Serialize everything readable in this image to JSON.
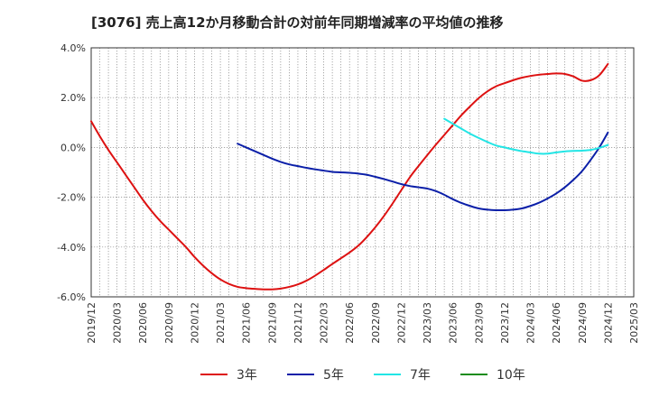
{
  "chart_data": {
    "type": "line",
    "title": "[3076]  売上高12か月移動合計の対前年同期増減率の平均値の推移",
    "xlabel": "",
    "ylabel": "",
    "x_ticks": [
      "2019/12",
      "2020/03",
      "2020/06",
      "2020/09",
      "2020/12",
      "2021/03",
      "2021/06",
      "2021/09",
      "2021/12",
      "2022/03",
      "2022/06",
      "2022/09",
      "2022/12",
      "2023/03",
      "2023/06",
      "2023/09",
      "2023/12",
      "2024/03",
      "2024/06",
      "2024/09",
      "2024/12",
      "2025/03"
    ],
    "y_ticks": [
      "4.0%",
      "2.0%",
      "0.0%",
      "-2.0%",
      "-4.0%",
      "-6.0%"
    ],
    "ylim": [
      -6,
      4
    ],
    "grid": true,
    "legend_position": "bottom",
    "series": [
      {
        "name": "3年",
        "color": "#dd1111",
        "points": [
          [
            "2019/12",
            1.05
          ],
          [
            "2020/01",
            0.45
          ],
          [
            "2020/02",
            -0.1
          ],
          [
            "2020/03",
            -0.6
          ],
          [
            "2020/04",
            -1.1
          ],
          [
            "2020/05",
            -1.6
          ],
          [
            "2020/06",
            -2.1
          ],
          [
            "2020/07",
            -2.55
          ],
          [
            "2020/08",
            -2.95
          ],
          [
            "2020/09",
            -3.3
          ],
          [
            "2020/10",
            -3.65
          ],
          [
            "2020/11",
            -4.0
          ],
          [
            "2020/12",
            -4.4
          ],
          [
            "2021/01",
            -4.75
          ],
          [
            "2021/02",
            -5.05
          ],
          [
            "2021/03",
            -5.3
          ],
          [
            "2021/04",
            -5.48
          ],
          [
            "2021/05",
            -5.6
          ],
          [
            "2021/06",
            -5.65
          ],
          [
            "2021/07",
            -5.68
          ],
          [
            "2021/08",
            -5.7
          ],
          [
            "2021/09",
            -5.7
          ],
          [
            "2021/10",
            -5.67
          ],
          [
            "2021/11",
            -5.6
          ],
          [
            "2021/12",
            -5.5
          ],
          [
            "2022/01",
            -5.35
          ],
          [
            "2022/02",
            -5.15
          ],
          [
            "2022/03",
            -4.92
          ],
          [
            "2022/04",
            -4.68
          ],
          [
            "2022/05",
            -4.45
          ],
          [
            "2022/06",
            -4.22
          ],
          [
            "2022/07",
            -3.95
          ],
          [
            "2022/08",
            -3.6
          ],
          [
            "2022/09",
            -3.2
          ],
          [
            "2022/10",
            -2.75
          ],
          [
            "2022/11",
            -2.25
          ],
          [
            "2022/12",
            -1.72
          ],
          [
            "2023/01",
            -1.2
          ],
          [
            "2023/02",
            -0.75
          ],
          [
            "2023/03",
            -0.32
          ],
          [
            "2023/04",
            0.1
          ],
          [
            "2023/05",
            0.5
          ],
          [
            "2023/06",
            0.9
          ],
          [
            "2023/07",
            1.3
          ],
          [
            "2023/08",
            1.65
          ],
          [
            "2023/09",
            1.98
          ],
          [
            "2023/10",
            2.25
          ],
          [
            "2023/11",
            2.45
          ],
          [
            "2023/12",
            2.58
          ],
          [
            "2024/01",
            2.7
          ],
          [
            "2024/02",
            2.8
          ],
          [
            "2024/03",
            2.87
          ],
          [
            "2024/04",
            2.92
          ],
          [
            "2024/05",
            2.95
          ],
          [
            "2024/06",
            2.97
          ],
          [
            "2024/07",
            2.95
          ],
          [
            "2024/08",
            2.85
          ],
          [
            "2024/09",
            2.68
          ],
          [
            "2024/10",
            2.7
          ],
          [
            "2024/11",
            2.9
          ],
          [
            "2024/12",
            3.35
          ]
        ]
      },
      {
        "name": "5年",
        "color": "#0b1fa8",
        "points": [
          [
            "2021/05",
            0.15
          ],
          [
            "2021/06",
            0.0
          ],
          [
            "2021/07",
            -0.15
          ],
          [
            "2021/08",
            -0.3
          ],
          [
            "2021/09",
            -0.45
          ],
          [
            "2021/10",
            -0.58
          ],
          [
            "2021/11",
            -0.68
          ],
          [
            "2021/12",
            -0.75
          ],
          [
            "2022/01",
            -0.82
          ],
          [
            "2022/02",
            -0.88
          ],
          [
            "2022/03",
            -0.93
          ],
          [
            "2022/04",
            -0.98
          ],
          [
            "2022/05",
            -1.0
          ],
          [
            "2022/06",
            -1.02
          ],
          [
            "2022/07",
            -1.05
          ],
          [
            "2022/08",
            -1.1
          ],
          [
            "2022/09",
            -1.18
          ],
          [
            "2022/10",
            -1.27
          ],
          [
            "2022/11",
            -1.37
          ],
          [
            "2022/12",
            -1.47
          ],
          [
            "2023/01",
            -1.55
          ],
          [
            "2023/02",
            -1.6
          ],
          [
            "2023/03",
            -1.65
          ],
          [
            "2023/04",
            -1.75
          ],
          [
            "2023/05",
            -1.9
          ],
          [
            "2023/06",
            -2.08
          ],
          [
            "2023/07",
            -2.23
          ],
          [
            "2023/08",
            -2.35
          ],
          [
            "2023/09",
            -2.45
          ],
          [
            "2023/10",
            -2.5
          ],
          [
            "2023/11",
            -2.52
          ],
          [
            "2023/12",
            -2.52
          ],
          [
            "2024/01",
            -2.5
          ],
          [
            "2024/02",
            -2.45
          ],
          [
            "2024/03",
            -2.35
          ],
          [
            "2024/04",
            -2.22
          ],
          [
            "2024/05",
            -2.05
          ],
          [
            "2024/06",
            -1.85
          ],
          [
            "2024/07",
            -1.6
          ],
          [
            "2024/08",
            -1.3
          ],
          [
            "2024/09",
            -0.95
          ],
          [
            "2024/10",
            -0.5
          ],
          [
            "2024/11",
            0.0
          ],
          [
            "2024/12",
            0.6
          ]
        ]
      },
      {
        "name": "7年",
        "color": "#22e5e5",
        "points": [
          [
            "2023/05",
            1.15
          ],
          [
            "2023/06",
            0.95
          ],
          [
            "2023/07",
            0.75
          ],
          [
            "2023/08",
            0.55
          ],
          [
            "2023/09",
            0.38
          ],
          [
            "2023/10",
            0.22
          ],
          [
            "2023/11",
            0.08
          ],
          [
            "2023/12",
            0.0
          ],
          [
            "2024/01",
            -0.08
          ],
          [
            "2024/02",
            -0.15
          ],
          [
            "2024/03",
            -0.2
          ],
          [
            "2024/04",
            -0.25
          ],
          [
            "2024/05",
            -0.25
          ],
          [
            "2024/06",
            -0.2
          ],
          [
            "2024/07",
            -0.16
          ],
          [
            "2024/08",
            -0.14
          ],
          [
            "2024/09",
            -0.13
          ],
          [
            "2024/10",
            -0.1
          ],
          [
            "2024/11",
            -0.02
          ],
          [
            "2024/12",
            0.1
          ]
        ]
      },
      {
        "name": "10年",
        "color": "#1a8c1a",
        "points": []
      }
    ]
  }
}
